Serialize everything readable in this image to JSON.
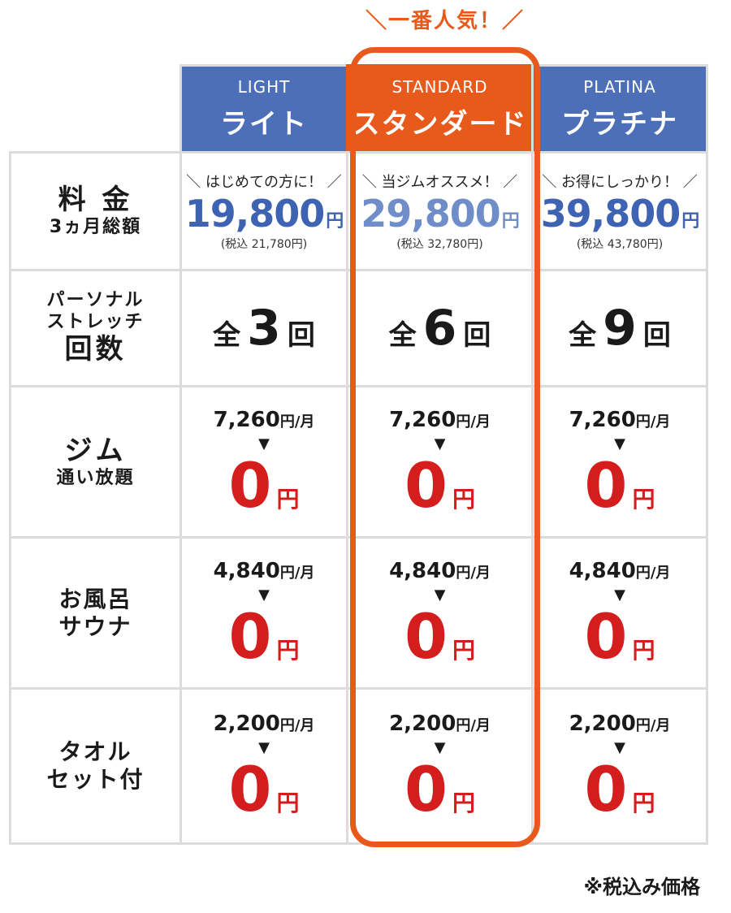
{
  "badge": "＼一番人気！／",
  "plans": [
    {
      "en": "LIGHT",
      "ja": "ライト",
      "tagline": "＼ はじめての方に！ ／",
      "price": "19,800",
      "yen": "円",
      "tax": "(税込 21,780円)",
      "count": "3"
    },
    {
      "en": "STANDARD",
      "ja": "スタンダード",
      "tagline": "＼ 当ジムオススメ！ ／",
      "price": "29,800",
      "yen": "円",
      "tax": "(税込 32,780円)",
      "count": "6"
    },
    {
      "en": "PLATINA",
      "ja": "プラチナ",
      "tagline": "＼ お得にしっかり！ ／",
      "price": "39,800",
      "yen": "円",
      "tax": "(税込 43,780円)",
      "count": "9"
    }
  ],
  "rows": {
    "fee": {
      "line1": "料 金",
      "line2": "3ヵ月総額"
    },
    "stretch": {
      "line1": "パーソナル",
      "line2": "ストレッチ",
      "line3": "回数"
    },
    "gym": {
      "line1": "ジム",
      "line2": "通い放題"
    },
    "bath": {
      "line1": "お風呂",
      "line2": "サウナ"
    },
    "towel": {
      "line1": "タオル",
      "line2": "セット付"
    }
  },
  "count_prefix": "全",
  "count_suffix": "回",
  "services": {
    "gym": {
      "price": "7,260",
      "unit": "円/月"
    },
    "bath": {
      "price": "4,840",
      "unit": "円/月"
    },
    "towel": {
      "price": "2,200",
      "unit": "円/月"
    }
  },
  "arrow": "▼",
  "zero": "0",
  "zero_yen": "円",
  "note": "※税込み価格",
  "colors": {
    "blue": "#4d6fb8",
    "orange": "#e85a1b",
    "red": "#d41e1e"
  }
}
